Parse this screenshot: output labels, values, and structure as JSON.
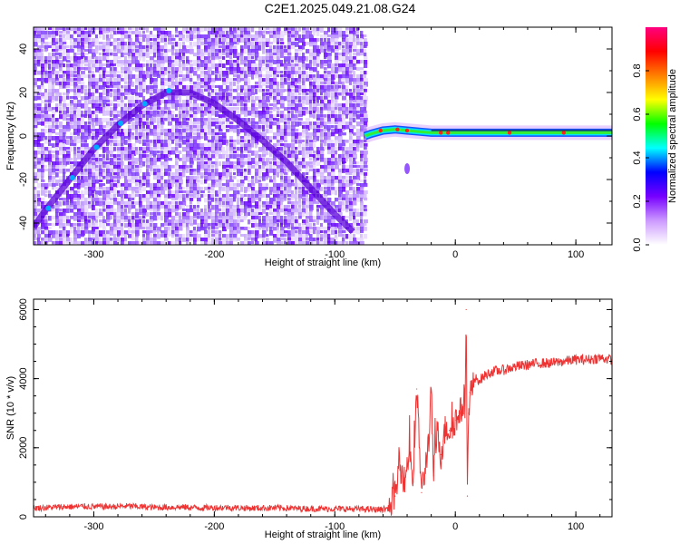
{
  "title": "C2E1.2025.049.21.08.G24",
  "chart_data": [
    {
      "type": "heatmap",
      "xlabel": "Height of straight line (km)",
      "ylabel": "Frequency (Hz)",
      "xlim": [
        -350,
        130
      ],
      "ylim": [
        -50,
        50
      ],
      "xticks": [
        -300,
        -200,
        -100,
        0,
        100
      ],
      "xtick_labels": [
        "-300",
        "-200",
        "-100",
        "0",
        "100"
      ],
      "yticks": [
        -40,
        -20,
        0,
        20,
        40
      ],
      "ytick_labels": [
        "-40",
        "-20",
        "0",
        "20",
        "40"
      ],
      "data_coverage_x": [
        -350,
        -75
      ],
      "ridge_arc": [
        {
          "x": -350,
          "y": -42
        },
        {
          "x": -340,
          "y": -34
        },
        {
          "x": -320,
          "y": -20
        },
        {
          "x": -300,
          "y": -6
        },
        {
          "x": -280,
          "y": 5
        },
        {
          "x": -260,
          "y": 14
        },
        {
          "x": -240,
          "y": 20
        },
        {
          "x": -220,
          "y": 20
        },
        {
          "x": -200,
          "y": 15
        },
        {
          "x": -180,
          "y": 7
        },
        {
          "x": -160,
          "y": -2
        },
        {
          "x": -140,
          "y": -12
        },
        {
          "x": -120,
          "y": -24
        },
        {
          "x": -100,
          "y": -36
        },
        {
          "x": -85,
          "y": -44
        }
      ],
      "strong_band": [
        {
          "x": -75,
          "y": 0
        },
        {
          "x": -70,
          "y": 1
        },
        {
          "x": -60,
          "y": 2.5
        },
        {
          "x": -50,
          "y": 3
        },
        {
          "x": -40,
          "y": 2.5
        },
        {
          "x": -30,
          "y": 2
        },
        {
          "x": -20,
          "y": 1.5
        },
        {
          "x": -10,
          "y": 1.5
        },
        {
          "x": 0,
          "y": 1.5
        },
        {
          "x": 50,
          "y": 1.5
        },
        {
          "x": 100,
          "y": 1.5
        },
        {
          "x": 130,
          "y": 1.5
        }
      ],
      "colorbar": {
        "label": "Normalized spectral amplitude",
        "ticks": [
          0.0,
          0.2,
          0.4,
          0.6,
          0.8
        ],
        "tick_labels": [
          "0.0",
          "0.2",
          "0.4",
          "0.6",
          "0.8"
        ],
        "range": [
          0,
          1
        ],
        "colors": [
          "#ffffff",
          "#cc99ff",
          "#7700ff",
          "#0000ff",
          "#00ffff",
          "#00ff00",
          "#ffff00",
          "#ff8000",
          "#ff0000",
          "#ff0080"
        ]
      }
    },
    {
      "type": "line",
      "xlabel": "Height of straight line (km)",
      "ylabel": "SNR (10 * v/v)",
      "xlim": [
        -350,
        130
      ],
      "ylim": [
        0,
        6300
      ],
      "xticks": [
        -300,
        -200,
        -100,
        0,
        100
      ],
      "xtick_labels": [
        "-300",
        "-200",
        "-100",
        "0",
        "100"
      ],
      "yticks": [
        0,
        2000,
        4000,
        6000
      ],
      "ytick_labels": [
        "0",
        "2000",
        "4000",
        "6000"
      ],
      "series": [
        {
          "name": "SNR",
          "color": "#ee3333",
          "x": [
            -350,
            -330,
            -310,
            -290,
            -270,
            -250,
            -230,
            -210,
            -190,
            -170,
            -150,
            -130,
            -110,
            -90,
            -75,
            -62,
            -55,
            -50,
            -46,
            -42,
            -38,
            -35,
            -32,
            -28,
            -25,
            -22,
            -20,
            -18,
            -15,
            -12,
            -10,
            -8,
            -5,
            -2,
            0,
            2,
            4,
            6,
            8,
            9,
            10,
            11,
            12,
            14,
            17,
            20,
            25,
            30,
            40,
            50,
            60,
            70,
            80,
            90,
            100,
            110,
            120,
            130
          ],
          "y": [
            250,
            280,
            300,
            290,
            310,
            270,
            280,
            260,
            270,
            250,
            260,
            240,
            230,
            230,
            220,
            210,
            250,
            600,
            1500,
            1000,
            2000,
            1000,
            3700,
            700,
            1400,
            2300,
            3600,
            1200,
            2500,
            1800,
            2200,
            2600,
            2500,
            2700,
            2800,
            2850,
            3000,
            3200,
            3300,
            6000,
            600,
            3000,
            3600,
            3700,
            4000,
            3950,
            4100,
            4200,
            4250,
            4350,
            4400,
            4450,
            4450,
            4500,
            4550,
            4550,
            4600,
            4550
          ]
        }
      ]
    }
  ]
}
